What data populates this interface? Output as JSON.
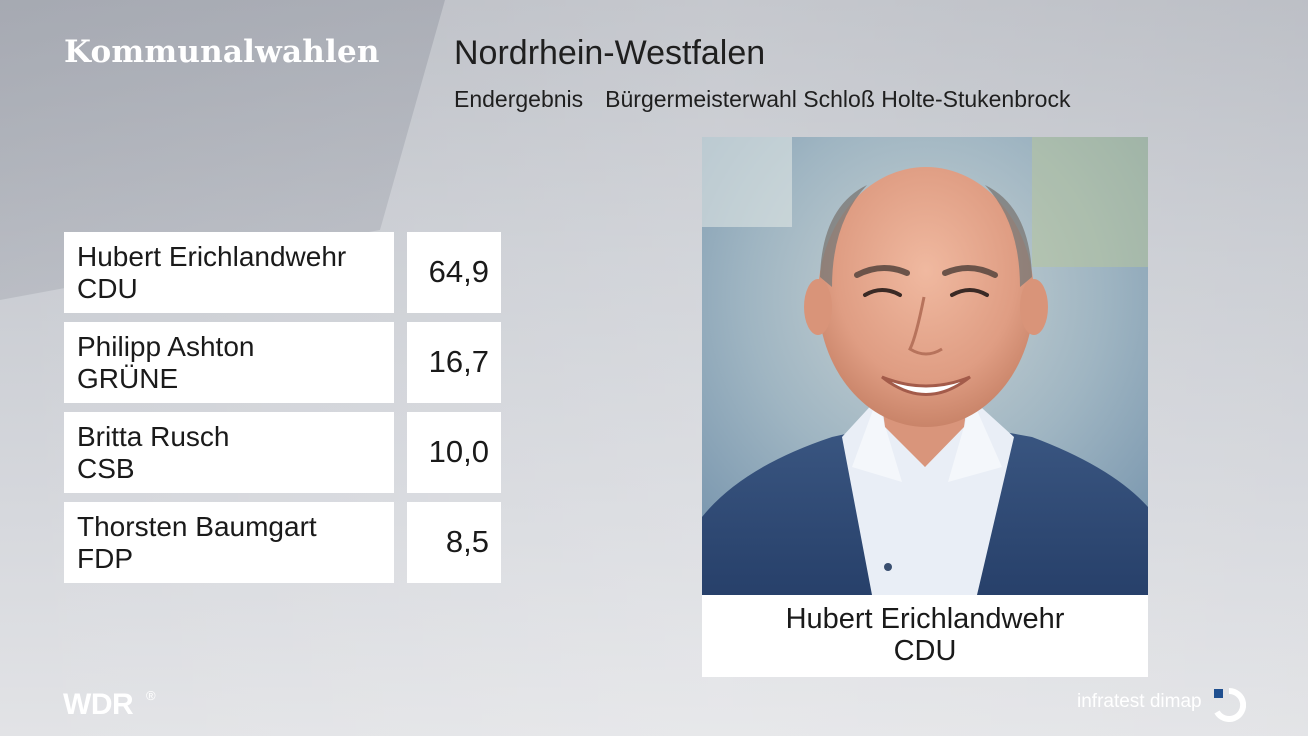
{
  "header": {
    "brand": "Kommunalwahlen",
    "region": "Nordrhein-Westfalen",
    "status": "Endergebnis",
    "election": "Bürgermeisterwahl Schloß Holte-Stukenbrock"
  },
  "results": [
    {
      "candidate": "Hubert Erichlandwehr",
      "party": "CDU",
      "value": "64,9"
    },
    {
      "candidate": "Philipp Ashton",
      "party": "GRÜNE",
      "value": "16,7"
    },
    {
      "candidate": "Britta Rusch",
      "party": "CSB",
      "value": "10,0"
    },
    {
      "candidate": "Thorsten Baumgart",
      "party": "FDP",
      "value": "8,5"
    }
  ],
  "winner": {
    "name": "Hubert Erichlandwehr",
    "party": "CDU"
  },
  "footer": {
    "broadcaster": "WDR",
    "broadcaster_mark": "®",
    "pollster": "infratest dimap"
  },
  "colors": {
    "text": "#1a1a1a",
    "panel": "#ffffff",
    "logo": "#ffffff",
    "jacket": "#2f4a72"
  }
}
